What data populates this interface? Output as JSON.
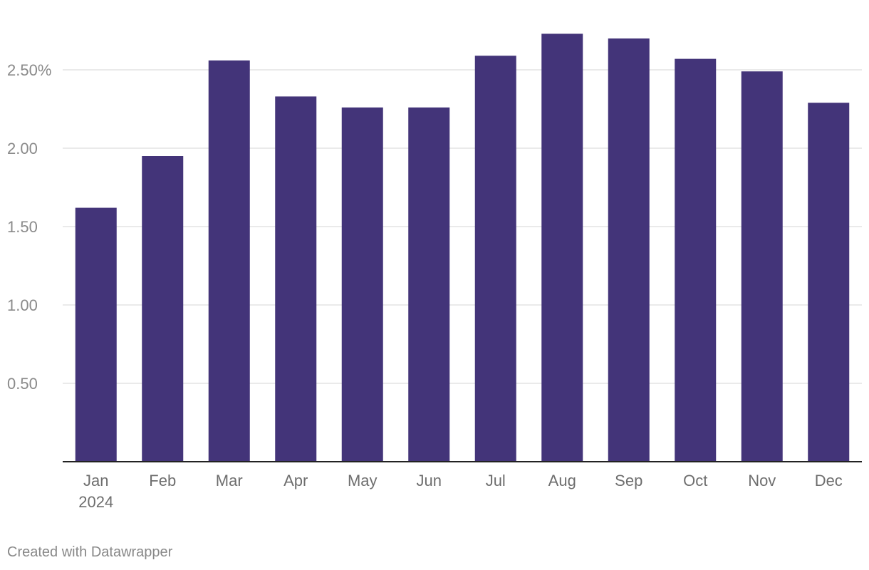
{
  "chart_data": {
    "type": "bar",
    "categories": [
      "Jan",
      "Feb",
      "Mar",
      "Apr",
      "May",
      "Jun",
      "Jul",
      "Aug",
      "Sep",
      "Oct",
      "Nov",
      "Dec"
    ],
    "category_sublabels": {
      "Jan": "2024"
    },
    "values": [
      1.62,
      1.95,
      2.56,
      2.33,
      2.26,
      2.26,
      2.59,
      2.73,
      2.7,
      2.57,
      2.49,
      2.29
    ],
    "ylim": [
      0,
      2.9
    ],
    "yticks": [
      {
        "value": 0.5,
        "label": "0.50"
      },
      {
        "value": 1.0,
        "label": "1.00"
      },
      {
        "value": 1.5,
        "label": "1.50"
      },
      {
        "value": 2.0,
        "label": "2.00"
      },
      {
        "value": 2.5,
        "label": "2.50%"
      }
    ],
    "title": "",
    "xlabel": "",
    "ylabel": "",
    "grid": true,
    "bar_color": "#433479",
    "grid_color": "#e3e3e3",
    "axis_color": "#222222"
  },
  "footer": {
    "credit": "Created with Datawrapper"
  }
}
